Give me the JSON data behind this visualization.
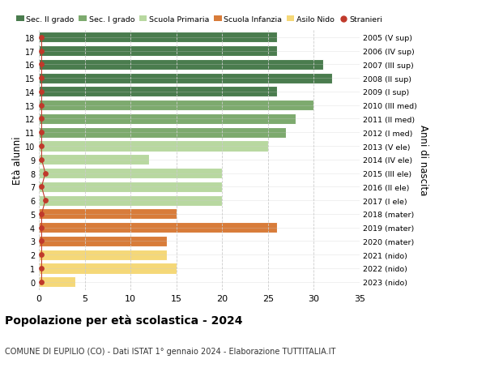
{
  "ages": [
    18,
    17,
    16,
    15,
    14,
    13,
    12,
    11,
    10,
    9,
    8,
    7,
    6,
    5,
    4,
    3,
    2,
    1,
    0
  ],
  "right_labels": [
    "2005 (V sup)",
    "2006 (IV sup)",
    "2007 (III sup)",
    "2008 (II sup)",
    "2009 (I sup)",
    "2010 (III med)",
    "2011 (II med)",
    "2012 (I med)",
    "2013 (V ele)",
    "2014 (IV ele)",
    "2015 (III ele)",
    "2016 (II ele)",
    "2017 (I ele)",
    "2018 (mater)",
    "2019 (mater)",
    "2020 (mater)",
    "2021 (nido)",
    "2022 (nido)",
    "2023 (nido)"
  ],
  "bar_values": [
    26,
    26,
    31,
    32,
    26,
    30,
    28,
    27,
    25,
    12,
    20,
    20,
    20,
    15,
    26,
    14,
    14,
    15,
    4
  ],
  "bar_colors": [
    "#4a7c4e",
    "#4a7c4e",
    "#4a7c4e",
    "#4a7c4e",
    "#4a7c4e",
    "#7daa6e",
    "#7daa6e",
    "#7daa6e",
    "#b8d8a0",
    "#b8d8a0",
    "#b8d8a0",
    "#b8d8a0",
    "#b8d8a0",
    "#d87c3a",
    "#d87c3a",
    "#d87c3a",
    "#f5d878",
    "#f5d878",
    "#f5d878"
  ],
  "stranieri_values": [
    0.3,
    0.3,
    0.3,
    0.3,
    0.3,
    0.3,
    0.3,
    0.3,
    0.3,
    0.3,
    0.7,
    0.3,
    0.7,
    0.3,
    0.3,
    0.3,
    0.3,
    0.3,
    0.3
  ],
  "legend_labels": [
    "Sec. II grado",
    "Sec. I grado",
    "Scuola Primaria",
    "Scuola Infanzia",
    "Asilo Nido",
    "Stranieri"
  ],
  "legend_colors": [
    "#4a7c4e",
    "#7daa6e",
    "#b8d8a0",
    "#d87c3a",
    "#f5d878",
    "#c0392b"
  ],
  "title_bold": "Popolazione per età scolastica - 2024",
  "subtitle": "COMUNE DI EUPILIO (CO) - Dati ISTAT 1° gennaio 2024 - Elaborazione TUTTITALIA.IT",
  "ylabel_left": "Età alunni",
  "ylabel_right": "Anni di nascita",
  "xlim": [
    0,
    35
  ],
  "xticks": [
    0,
    5,
    10,
    15,
    20,
    25,
    30,
    35
  ],
  "bar_height": 0.78,
  "background_color": "#ffffff",
  "grid_color": "#cccccc"
}
